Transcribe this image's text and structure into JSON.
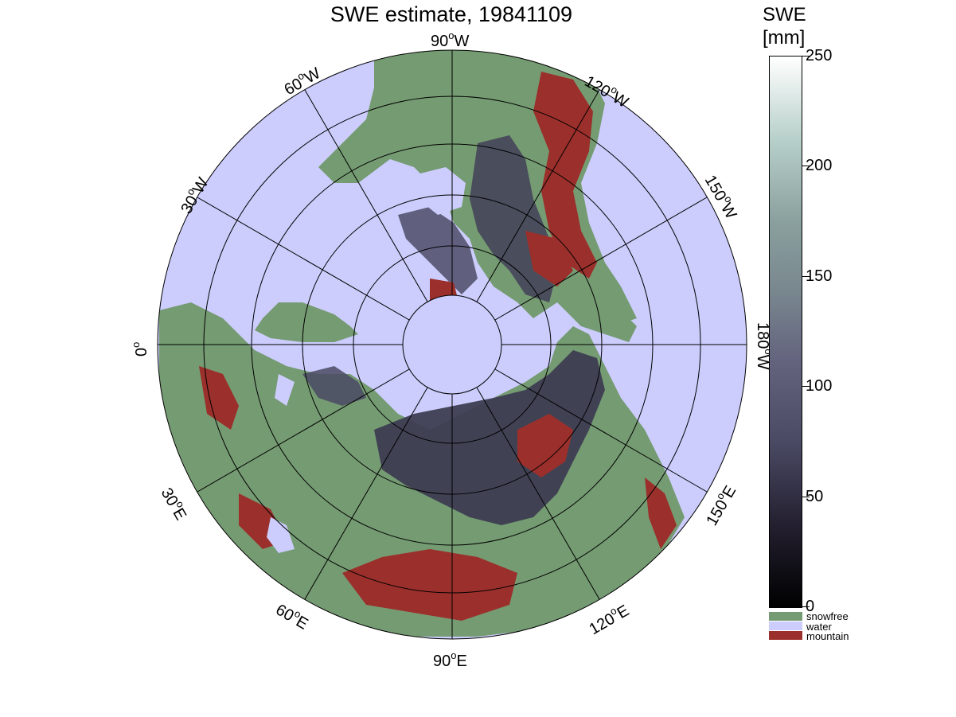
{
  "title": "SWE estimate, 19841109",
  "colorbar": {
    "title_line1": "SWE",
    "title_line2": "[mm]",
    "min": 0,
    "max": 250,
    "ticks": [
      "250",
      "200",
      "150",
      "100",
      "50",
      "0"
    ],
    "tick_values": [
      250,
      200,
      150,
      100,
      50,
      0
    ]
  },
  "categories": [
    {
      "label": "snowfree",
      "color": "#759b72"
    },
    {
      "label": "water",
      "color": "#cccdfd"
    },
    {
      "label": "mountain",
      "color": "#9b2f2b"
    }
  ],
  "longitude_labels": {
    "lon_90W": {
      "value": "90",
      "hemi": "W"
    },
    "lon_120W": {
      "value": "120",
      "hemi": "W"
    },
    "lon_150W": {
      "value": "150",
      "hemi": "W"
    },
    "lon_180W": {
      "value": "180",
      "hemi": "W"
    },
    "lon_150E": {
      "value": "150",
      "hemi": "E"
    },
    "lon_120E": {
      "value": "120",
      "hemi": "E"
    },
    "lon_90E": {
      "value": "90",
      "hemi": "E"
    },
    "lon_60E": {
      "value": "60",
      "hemi": "E"
    },
    "lon_30E": {
      "value": "30",
      "hemi": "E"
    },
    "lon_0": {
      "value": "0",
      "hemi": ""
    },
    "lon_30W": {
      "value": "30",
      "hemi": "W"
    },
    "lon_60W": {
      "value": "60",
      "hemi": "W"
    }
  },
  "degree_symbol": "o",
  "map": {
    "projection": "north polar stereographic",
    "ocean_color": "#cccdfd",
    "land_color": "#759b72",
    "mountain_color": "#9b2f2b",
    "snow_color": "#46465a",
    "grid_color": "#000000"
  }
}
